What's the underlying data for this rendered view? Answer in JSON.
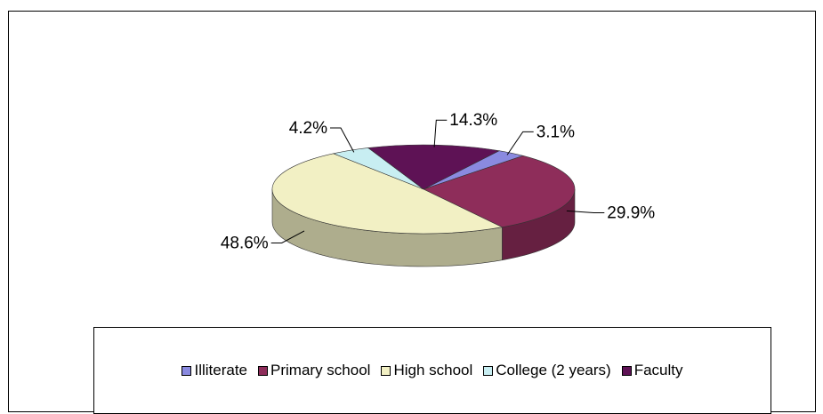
{
  "chart_data": {
    "type": "pie",
    "title": "",
    "slices": [
      {
        "name": "Illiterate",
        "value": 3.1,
        "label": "3.1%",
        "color": "#8a8ae0"
      },
      {
        "name": "Primary school",
        "value": 29.9,
        "label": "29.9%",
        "color": "#8e2d5a"
      },
      {
        "name": "High school",
        "value": 48.6,
        "label": "48.6%",
        "color": "#f2f0c4"
      },
      {
        "name": "College (2 years)",
        "value": 4.2,
        "label": "4.2%",
        "color": "#c8eef2"
      },
      {
        "name": "Faculty",
        "value": 14.3,
        "label": "14.3%",
        "color": "#5e1255"
      }
    ],
    "legend_position": "bottom",
    "style": "3d"
  },
  "legend": {
    "items": [
      {
        "label": "Illiterate",
        "color": "#8a8ae0"
      },
      {
        "label": "Primary school",
        "color": "#8e2d5a"
      },
      {
        "label": "High school",
        "color": "#f2f0c4"
      },
      {
        "label": "College (2 years)",
        "color": "#c8eef2"
      },
      {
        "label": "Faculty",
        "color": "#5e1255"
      }
    ]
  }
}
